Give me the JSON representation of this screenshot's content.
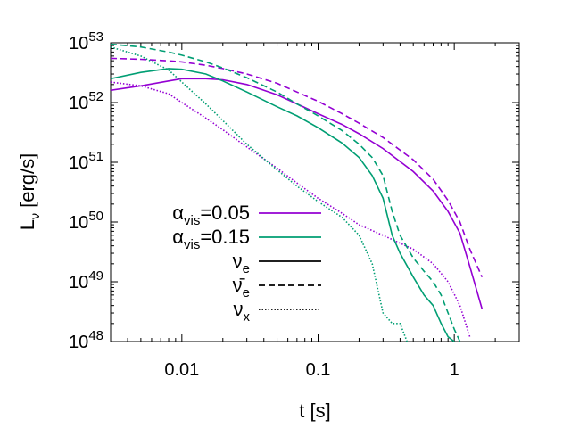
{
  "chart_data": {
    "type": "line",
    "xscale": "log",
    "yscale": "log",
    "xlim": [
      0.003,
      3
    ],
    "ylim": [
      1e+48,
      1e+53
    ],
    "xlabel": "t [s]",
    "ylabel_main": "L",
    "ylabel_sub": "ν",
    "ylabel_unit": " [erg/s]",
    "xticks": [
      {
        "value": 0.01,
        "label": "0.01"
      },
      {
        "value": 0.1,
        "label": "0.1"
      },
      {
        "value": 1,
        "label": "1"
      }
    ],
    "yticks": [
      {
        "value": 1e+48,
        "base": "10",
        "exp": "48"
      },
      {
        "value": 1e+49,
        "base": "10",
        "exp": "49"
      },
      {
        "value": 1e+50,
        "base": "10",
        "exp": "50"
      },
      {
        "value": 1e+51,
        "base": "10",
        "exp": "51"
      },
      {
        "value": 1e+52,
        "base": "10",
        "exp": "52"
      },
      {
        "value": 1e+53,
        "base": "10",
        "exp": "53"
      }
    ],
    "legend": {
      "placement": "bottom-left",
      "entries": [
        {
          "main": "α",
          "sub": "vis",
          "tail": "=0.05",
          "color": "#9400d3",
          "dash": "solid"
        },
        {
          "main": "α",
          "sub": "vis",
          "tail": "=0.15",
          "color": "#009e73",
          "dash": "solid"
        },
        {
          "main": "ν",
          "sub": "e",
          "tail": "",
          "color": "#000000",
          "dash": "solid"
        },
        {
          "main": "ν̄",
          "sub": "e",
          "tail": "",
          "color": "#000000",
          "dash": "dashed"
        },
        {
          "main": "ν",
          "sub": "x",
          "tail": "",
          "color": "#000000",
          "dash": "dotted"
        }
      ]
    },
    "series": [
      {
        "name": "alpha0.05 nu_e",
        "color": "#9400d3",
        "dash": "solid",
        "x": [
          0.003,
          0.005,
          0.008,
          0.01,
          0.015,
          0.02,
          0.03,
          0.05,
          0.07,
          0.1,
          0.15,
          0.2,
          0.3,
          0.5,
          0.7,
          0.9,
          1.1,
          1.3,
          1.6
        ],
        "y": [
          1.6e+52,
          1.9e+52,
          2.3e+52,
          2.5e+52,
          2.5e+52,
          2.4e+52,
          2e+52,
          1.35e+52,
          9.5e+51,
          6.5e+51,
          4.3e+51,
          3e+51,
          1.7e+51,
          7e+50,
          3.3e+50,
          1.5e+50,
          6.5e+49,
          1.8e+49,
          3.5e+48
        ]
      },
      {
        "name": "alpha0.05 nubar_e",
        "color": "#9400d3",
        "dash": "dashed",
        "x": [
          0.003,
          0.005,
          0.008,
          0.01,
          0.015,
          0.02,
          0.03,
          0.05,
          0.07,
          0.1,
          0.15,
          0.2,
          0.3,
          0.5,
          0.7,
          0.9,
          1.1,
          1.3,
          1.6
        ],
        "y": [
          5.5e+52,
          5.3e+52,
          5e+52,
          4.8e+52,
          4.2e+52,
          3.7e+52,
          3e+52,
          2.1e+52,
          1.5e+52,
          1.05e+52,
          6.5e+51,
          4.5e+51,
          2.6e+51,
          1.1e+51,
          5.2e+50,
          2.3e+50,
          1e+50,
          3.5e+49,
          1.2e+49
        ]
      },
      {
        "name": "alpha0.05 nu_x",
        "color": "#9400d3",
        "dash": "dotted",
        "x": [
          0.003,
          0.005,
          0.008,
          0.01,
          0.015,
          0.02,
          0.03,
          0.05,
          0.07,
          0.1,
          0.15,
          0.2,
          0.3,
          0.5,
          0.7,
          0.9,
          1.1,
          1.3
        ],
        "y": [
          2.2e+52,
          1.9e+52,
          1.4e+52,
          1e+52,
          5.5e+51,
          3.5e+51,
          1.8e+51,
          8e+50,
          4.5e+50,
          2.5e+50,
          1.4e+50,
          9e+49,
          6e+49,
          3.5e+49,
          2e+49,
          1e+49,
          4e+48,
          1.2e+48
        ]
      },
      {
        "name": "alpha0.15 nu_e",
        "color": "#009e73",
        "dash": "solid",
        "x": [
          0.003,
          0.005,
          0.008,
          0.01,
          0.015,
          0.02,
          0.03,
          0.05,
          0.07,
          0.1,
          0.15,
          0.2,
          0.25,
          0.3,
          0.35,
          0.4,
          0.5,
          0.6,
          0.7,
          0.8,
          0.9,
          1.0
        ],
        "y": [
          2.5e+52,
          3.2e+52,
          3.7e+52,
          3.6e+52,
          3e+52,
          2.3e+52,
          1.5e+52,
          8.5e+51,
          6e+51,
          3.8e+51,
          2.1e+51,
          1.2e+51,
          6e+50,
          2.5e+50,
          6e+49,
          3e+49,
          1.2e+49,
          6e+48,
          4e+48,
          2e+48,
          1.2e+48,
          1e+48
        ]
      },
      {
        "name": "alpha0.15 nubar_e",
        "color": "#009e73",
        "dash": "dashed",
        "x": [
          0.003,
          0.005,
          0.008,
          0.01,
          0.015,
          0.02,
          0.03,
          0.05,
          0.07,
          0.1,
          0.15,
          0.2,
          0.25,
          0.3,
          0.35,
          0.4,
          0.5,
          0.6,
          0.7,
          0.8,
          0.9,
          1.0,
          1.1
        ],
        "y": [
          9.5e+52,
          8.5e+52,
          7e+52,
          6.2e+52,
          4.8e+52,
          3.8e+52,
          2.6e+52,
          1.5e+52,
          9.5e+51,
          6e+51,
          3.4e+51,
          2e+51,
          1.2e+51,
          6e+50,
          1.5e+50,
          6e+49,
          2.5e+49,
          1.5e+49,
          1e+49,
          6e+48,
          3e+48,
          1.6e+48,
          1e+48
        ]
      },
      {
        "name": "alpha0.15 nu_x",
        "color": "#009e73",
        "dash": "dotted",
        "x": [
          0.003,
          0.005,
          0.008,
          0.01,
          0.015,
          0.02,
          0.03,
          0.05,
          0.07,
          0.1,
          0.15,
          0.2,
          0.25,
          0.3,
          0.35,
          0.4,
          0.45
        ],
        "y": [
          8.5e+52,
          6e+52,
          3.5e+52,
          2.2e+52,
          9.5e+51,
          5e+51,
          2e+51,
          7.5e+50,
          4e+50,
          2.2e+50,
          1.2e+50,
          6e+49,
          2e+49,
          3e+48,
          2e+48,
          2e+48,
          1e+48
        ]
      }
    ]
  }
}
